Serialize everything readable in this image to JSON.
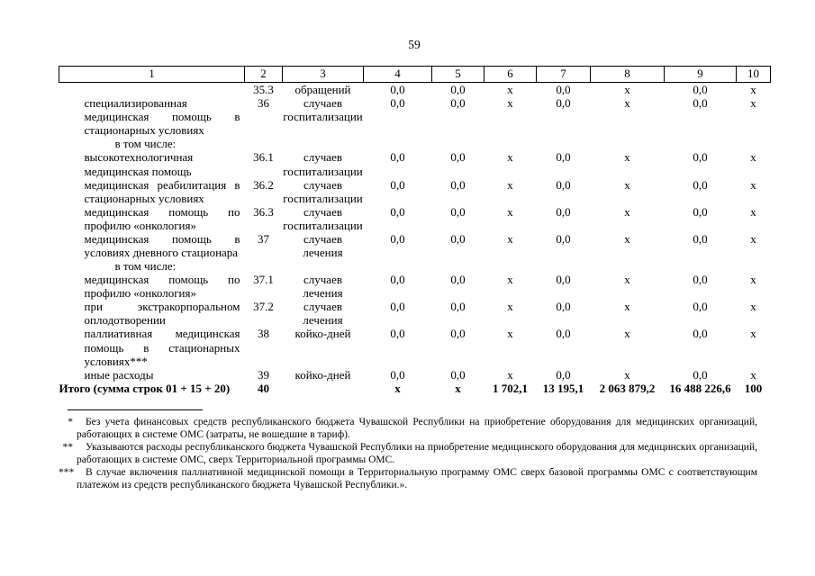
{
  "page": {
    "number": "59"
  },
  "table": {
    "header": [
      "1",
      "2",
      "3",
      "4",
      "5",
      "6",
      "7",
      "8",
      "9",
      "10"
    ],
    "rows": [
      {
        "name": "",
        "num": "35.3",
        "unit": "обращений",
        "values": [
          "0,0",
          "0,0",
          "x",
          "0,0",
          "x",
          "0,0",
          "x"
        ]
      },
      {
        "name": "специализированная медицинская помощь в стационарных условиях",
        "num": "36",
        "unit": "случаев госпитализации",
        "values": [
          "0,0",
          "0,0",
          "x",
          "0,0",
          "x",
          "0,0",
          "x"
        ]
      },
      {
        "name": "в том числе:",
        "subheader": true
      },
      {
        "name": "высокотехнологичная медицинская помощь",
        "num": "36.1",
        "unit": "случаев госпитализации",
        "values": [
          "0,0",
          "0,0",
          "x",
          "0,0",
          "x",
          "0,0",
          "x"
        ]
      },
      {
        "name": "медицинская реабилитация в стационарных условиях",
        "num": "36.2",
        "unit": "случаев госпитализации",
        "values": [
          "0,0",
          "0,0",
          "x",
          "0,0",
          "x",
          "0,0",
          "x"
        ]
      },
      {
        "name": "медицинская помощь по профилю «онкология»",
        "num": "36.3",
        "unit": "случаев госпитализации",
        "values": [
          "0,0",
          "0,0",
          "x",
          "0,0",
          "x",
          "0,0",
          "x"
        ]
      },
      {
        "name": "медицинская помощь в условиях дневного стационара",
        "num": "37",
        "unit": "случаев лечения",
        "values": [
          "0,0",
          "0,0",
          "x",
          "0,0",
          "x",
          "0,0",
          "x"
        ]
      },
      {
        "name": "в том числе:",
        "subheader": true
      },
      {
        "name": "медицинская помощь по профилю «онкология»",
        "num": "37.1",
        "unit": "случаев лечения",
        "values": [
          "0,0",
          "0,0",
          "x",
          "0,0",
          "x",
          "0,0",
          "x"
        ]
      },
      {
        "name": "при экстракорпоральном оплодотворении",
        "num": "37.2",
        "unit": "случаев лечения",
        "values": [
          "0,0",
          "0,0",
          "x",
          "0,0",
          "x",
          "0,0",
          "x"
        ]
      },
      {
        "name": "паллиативная медицинская помощь в стационарных условиях***",
        "num": "38",
        "unit": "койко-дней",
        "values": [
          "0,0",
          "0,0",
          "x",
          "0,0",
          "x",
          "0,0",
          "x"
        ]
      },
      {
        "name": "иные расходы",
        "num": "39",
        "unit": "койко-дней",
        "values": [
          "0,0",
          "0,0",
          "x",
          "0,0",
          "x",
          "0,0",
          "x"
        ]
      },
      {
        "name": "Итого (сумма строк 01 + 15 + 20)",
        "num": "40",
        "unit": "",
        "values": [
          "x",
          "x",
          "1 702,1",
          "13 195,1",
          "2 063 879,2",
          "16 488 226,6",
          "100"
        ],
        "total": true
      }
    ]
  },
  "footnotes": [
    {
      "marker": "*",
      "text": "Без учета финансовых средств республиканского бюджета Чувашской Республики на приобретение оборудования для медицинских организаций, работающих в системе ОМС (затраты, не вошедшие в тариф)."
    },
    {
      "marker": "**",
      "text": "Указываются расходы республиканского бюджета Чувашской Республики на приобретение медицинского оборудования для медицинских организаций, работающих в системе ОМС, сверх Территориальной программы ОМС."
    },
    {
      "marker": "***",
      "text": "В случае включения паллиативной медицинской помощи в Территориальную программу ОМС сверх базовой программы ОМС с соответствующим платежом из средств республиканского бюджета Чувашской Республики.»."
    }
  ]
}
